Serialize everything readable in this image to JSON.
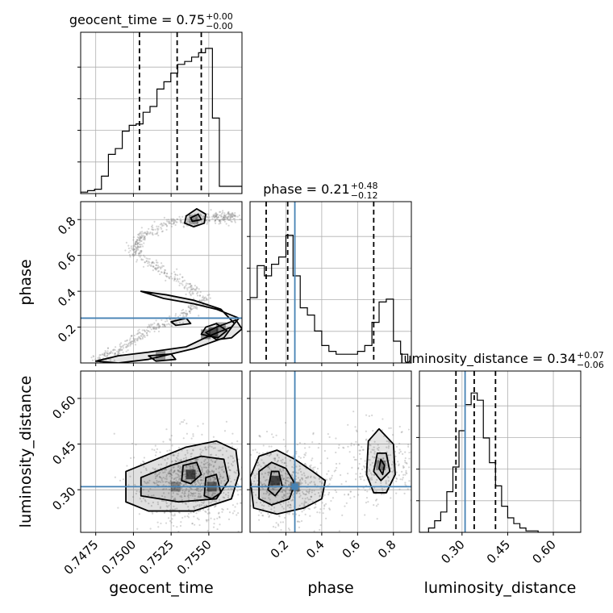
{
  "chart_data": {
    "type": "corner",
    "parameters": [
      "geocent_time",
      "phase",
      "luminosity_distance"
    ],
    "truths": {
      "geocent_time": null,
      "phase": 0.25,
      "luminosity_distance": 0.31
    },
    "truth_color": "#4682b4",
    "grid": true,
    "titles": [
      {
        "param": "geocent_time",
        "prefix": "geocent_time = 0.75",
        "upper": "+0.00",
        "lower": "−0.00"
      },
      {
        "param": "phase",
        "prefix": "phase = 0.21",
        "upper": "+0.48",
        "lower": "−0.12"
      },
      {
        "param": "luminosity_distance",
        "prefix": "luminosity_distance = 0.34",
        "upper": "+0.07",
        "lower": "−0.06"
      }
    ],
    "axes": {
      "geocent_time": {
        "range": [
          0.7465,
          0.7572
        ],
        "ticks": [
          0.7475,
          0.75,
          0.7525,
          0.755
        ],
        "tick_labels": [
          "0.7475",
          "0.7500",
          "0.7525",
          "0.7550"
        ],
        "label": "geocent_time"
      },
      "phase": {
        "range": [
          0.0,
          0.9
        ],
        "ticks": [
          0.2,
          0.4,
          0.6,
          0.8
        ],
        "tick_labels": [
          "0.2",
          "0.4",
          "0.6",
          "0.8"
        ],
        "label": "phase"
      },
      "luminosity_distance": {
        "range": [
          0.16,
          0.69
        ],
        "ticks": [
          0.3,
          0.45,
          0.6
        ],
        "tick_labels": [
          "0.30",
          "0.45",
          "0.60"
        ],
        "label": "luminosity_distance"
      }
    },
    "histograms": {
      "geocent_time": {
        "edges": [
          0.7465,
          0.74696,
          0.74742,
          0.74788,
          0.74834,
          0.7488,
          0.74926,
          0.74972,
          0.75018,
          0.75064,
          0.7511,
          0.75156,
          0.75202,
          0.75248,
          0.75294,
          0.7534,
          0.75386,
          0.75432,
          0.75478,
          0.75524,
          0.7557,
          0.7572
        ],
        "counts": [
          0.01,
          0.02,
          0.03,
          0.12,
          0.27,
          0.31,
          0.43,
          0.47,
          0.48,
          0.56,
          0.6,
          0.72,
          0.77,
          0.83,
          0.89,
          0.91,
          0.94,
          0.97,
          1.0,
          0.52,
          0.05
        ],
        "quantiles": [
          0.7504,
          0.7529,
          0.7545
        ]
      },
      "phase": {
        "edges": [
          0.0,
          0.04,
          0.08,
          0.12,
          0.16,
          0.2,
          0.24,
          0.28,
          0.32,
          0.36,
          0.4,
          0.44,
          0.48,
          0.52,
          0.56,
          0.6,
          0.64,
          0.68,
          0.72,
          0.76,
          0.8,
          0.84,
          0.88
        ],
        "counts": [
          0.45,
          0.67,
          0.6,
          0.68,
          0.73,
          0.88,
          0.6,
          0.38,
          0.33,
          0.22,
          0.12,
          0.08,
          0.06,
          0.06,
          0.06,
          0.08,
          0.12,
          0.28,
          0.42,
          0.44,
          0.15,
          0.06
        ],
        "quantiles": [
          0.09,
          0.21,
          0.69
        ]
      },
      "luminosity_distance": {
        "edges": [
          0.16,
          0.19,
          0.21,
          0.23,
          0.25,
          0.27,
          0.29,
          0.31,
          0.33,
          0.35,
          0.37,
          0.39,
          0.41,
          0.43,
          0.45,
          0.47,
          0.49,
          0.51,
          0.53,
          0.55,
          0.69
        ],
        "counts": [
          0.0,
          0.03,
          0.08,
          0.14,
          0.28,
          0.45,
          0.7,
          0.88,
          0.96,
          0.91,
          0.65,
          0.48,
          0.32,
          0.18,
          0.1,
          0.06,
          0.03,
          0.01,
          0.01,
          0.0
        ],
        "quantiles": [
          0.28,
          0.34,
          0.41
        ]
      }
    },
    "panels2d": [
      {
        "x": "geocent_time",
        "y": "phase",
        "contours": [
          [
            [
              0.7535,
              0.82
            ],
            [
              0.7542,
              0.86
            ],
            [
              0.7548,
              0.83
            ],
            [
              0.7547,
              0.78
            ],
            [
              0.754,
              0.76
            ],
            [
              0.7534,
              0.78
            ]
          ],
          [
            [
              0.7538,
              0.81
            ],
            [
              0.7543,
              0.83
            ],
            [
              0.7545,
              0.8
            ],
            [
              0.7539,
              0.79
            ]
          ],
          [
            [
              0.7475,
              0.01
            ],
            [
              0.749,
              0.04
            ],
            [
              0.751,
              0.06
            ],
            [
              0.7535,
              0.09
            ],
            [
              0.755,
              0.15
            ],
            [
              0.7565,
              0.2
            ],
            [
              0.757,
              0.25
            ],
            [
              0.7555,
              0.3
            ],
            [
              0.754,
              0.33
            ],
            [
              0.752,
              0.36
            ],
            [
              0.7505,
              0.4
            ],
            [
              0.7522,
              0.38
            ],
            [
              0.754,
              0.35
            ],
            [
              0.7558,
              0.3
            ],
            [
              0.7567,
              0.22
            ],
            [
              0.756,
              0.14
            ],
            [
              0.754,
              0.08
            ],
            [
              0.751,
              0.02
            ],
            [
              0.749,
              0.0
            ]
          ],
          [
            [
              0.7555,
              0.2
            ],
            [
              0.7568,
              0.24
            ],
            [
              0.7572,
              0.19
            ],
            [
              0.7565,
              0.14
            ],
            [
              0.7555,
              0.13
            ],
            [
              0.7548,
              0.17
            ]
          ],
          [
            [
              0.7545,
              0.16
            ],
            [
              0.7548,
              0.2
            ],
            [
              0.7555,
              0.22
            ],
            [
              0.7562,
              0.18
            ],
            [
              0.7556,
              0.14
            ]
          ],
          [
            [
              0.751,
              0.04
            ],
            [
              0.7525,
              0.05
            ],
            [
              0.7528,
              0.02
            ],
            [
              0.7515,
              0.01
            ]
          ],
          [
            [
              0.7525,
              0.23
            ],
            [
              0.7535,
              0.25
            ],
            [
              0.7538,
              0.22
            ],
            [
              0.7528,
              0.21
            ]
          ]
        ],
        "density_cells": [
          [
            0.7553,
            0.17,
            0.9
          ],
          [
            0.7548,
            0.16,
            0.6
          ],
          [
            0.7558,
            0.2,
            0.5
          ],
          [
            0.7518,
            0.04,
            0.5
          ],
          [
            0.754,
            0.8,
            0.4
          ]
        ],
        "samples_ridge": [
          [
            0.7475,
            0.01
          ],
          [
            0.749,
            0.07
          ],
          [
            0.7505,
            0.16
          ],
          [
            0.7528,
            0.24
          ],
          [
            0.7548,
            0.36
          ],
          [
            0.7522,
            0.5
          ],
          [
            0.75,
            0.62
          ],
          [
            0.7506,
            0.72
          ],
          [
            0.7528,
            0.79
          ],
          [
            0.7555,
            0.81
          ],
          [
            0.7568,
            0.82
          ]
        ]
      },
      {
        "x": "geocent_time",
        "y": "luminosity_distance",
        "contours": [
          [
            [
              0.7495,
              0.26
            ],
            [
              0.7495,
              0.36
            ],
            [
              0.7515,
              0.4
            ],
            [
              0.7535,
              0.44
            ],
            [
              0.7555,
              0.46
            ],
            [
              0.7568,
              0.43
            ],
            [
              0.757,
              0.35
            ],
            [
              0.7565,
              0.27
            ],
            [
              0.754,
              0.23
            ],
            [
              0.751,
              0.23
            ]
          ],
          [
            [
              0.7505,
              0.28
            ],
            [
              0.7505,
              0.34
            ],
            [
              0.7525,
              0.38
            ],
            [
              0.7545,
              0.41
            ],
            [
              0.756,
              0.4
            ],
            [
              0.7563,
              0.33
            ],
            [
              0.7555,
              0.27
            ],
            [
              0.753,
              0.26
            ]
          ],
          [
            [
              0.7532,
              0.33
            ],
            [
              0.7533,
              0.38
            ],
            [
              0.7542,
              0.39
            ],
            [
              0.7545,
              0.35
            ],
            [
              0.7538,
              0.32
            ]
          ],
          [
            [
              0.7547,
              0.28
            ],
            [
              0.7548,
              0.34
            ],
            [
              0.7555,
              0.35
            ],
            [
              0.7558,
              0.29
            ],
            [
              0.7552,
              0.27
            ]
          ]
        ],
        "density_cells": [
          [
            0.7538,
            0.35,
            0.9
          ],
          [
            0.7552,
            0.31,
            0.7
          ],
          [
            0.7528,
            0.31,
            0.5
          ]
        ]
      },
      {
        "x": "phase",
        "y": "luminosity_distance",
        "contours": [
          [
            [
              0.02,
              0.24
            ],
            [
              0.0,
              0.34
            ],
            [
              0.05,
              0.41
            ],
            [
              0.15,
              0.43
            ],
            [
              0.25,
              0.4
            ],
            [
              0.35,
              0.36
            ],
            [
              0.42,
              0.33
            ],
            [
              0.4,
              0.27
            ],
            [
              0.3,
              0.24
            ],
            [
              0.15,
              0.22
            ]
          ],
          [
            [
              0.05,
              0.27
            ],
            [
              0.05,
              0.36
            ],
            [
              0.12,
              0.39
            ],
            [
              0.2,
              0.37
            ],
            [
              0.25,
              0.32
            ],
            [
              0.22,
              0.27
            ],
            [
              0.12,
              0.25
            ]
          ],
          [
            [
              0.1,
              0.3
            ],
            [
              0.12,
              0.36
            ],
            [
              0.16,
              0.36
            ],
            [
              0.18,
              0.31
            ],
            [
              0.14,
              0.28
            ]
          ],
          [
            [
              0.65,
              0.35
            ],
            [
              0.66,
              0.46
            ],
            [
              0.72,
              0.5
            ],
            [
              0.8,
              0.45
            ],
            [
              0.81,
              0.35
            ],
            [
              0.76,
              0.29
            ],
            [
              0.69,
              0.29
            ]
          ],
          [
            [
              0.69,
              0.36
            ],
            [
              0.71,
              0.42
            ],
            [
              0.76,
              0.42
            ],
            [
              0.78,
              0.36
            ],
            [
              0.73,
              0.33
            ]
          ],
          [
            [
              0.72,
              0.37
            ],
            [
              0.73,
              0.4
            ],
            [
              0.75,
              0.38
            ],
            [
              0.74,
              0.35
            ]
          ]
        ],
        "density_cells": [
          [
            0.14,
            0.33,
            0.9
          ],
          [
            0.25,
            0.31,
            0.6
          ],
          [
            0.73,
            0.38,
            0.5
          ]
        ]
      }
    ]
  }
}
